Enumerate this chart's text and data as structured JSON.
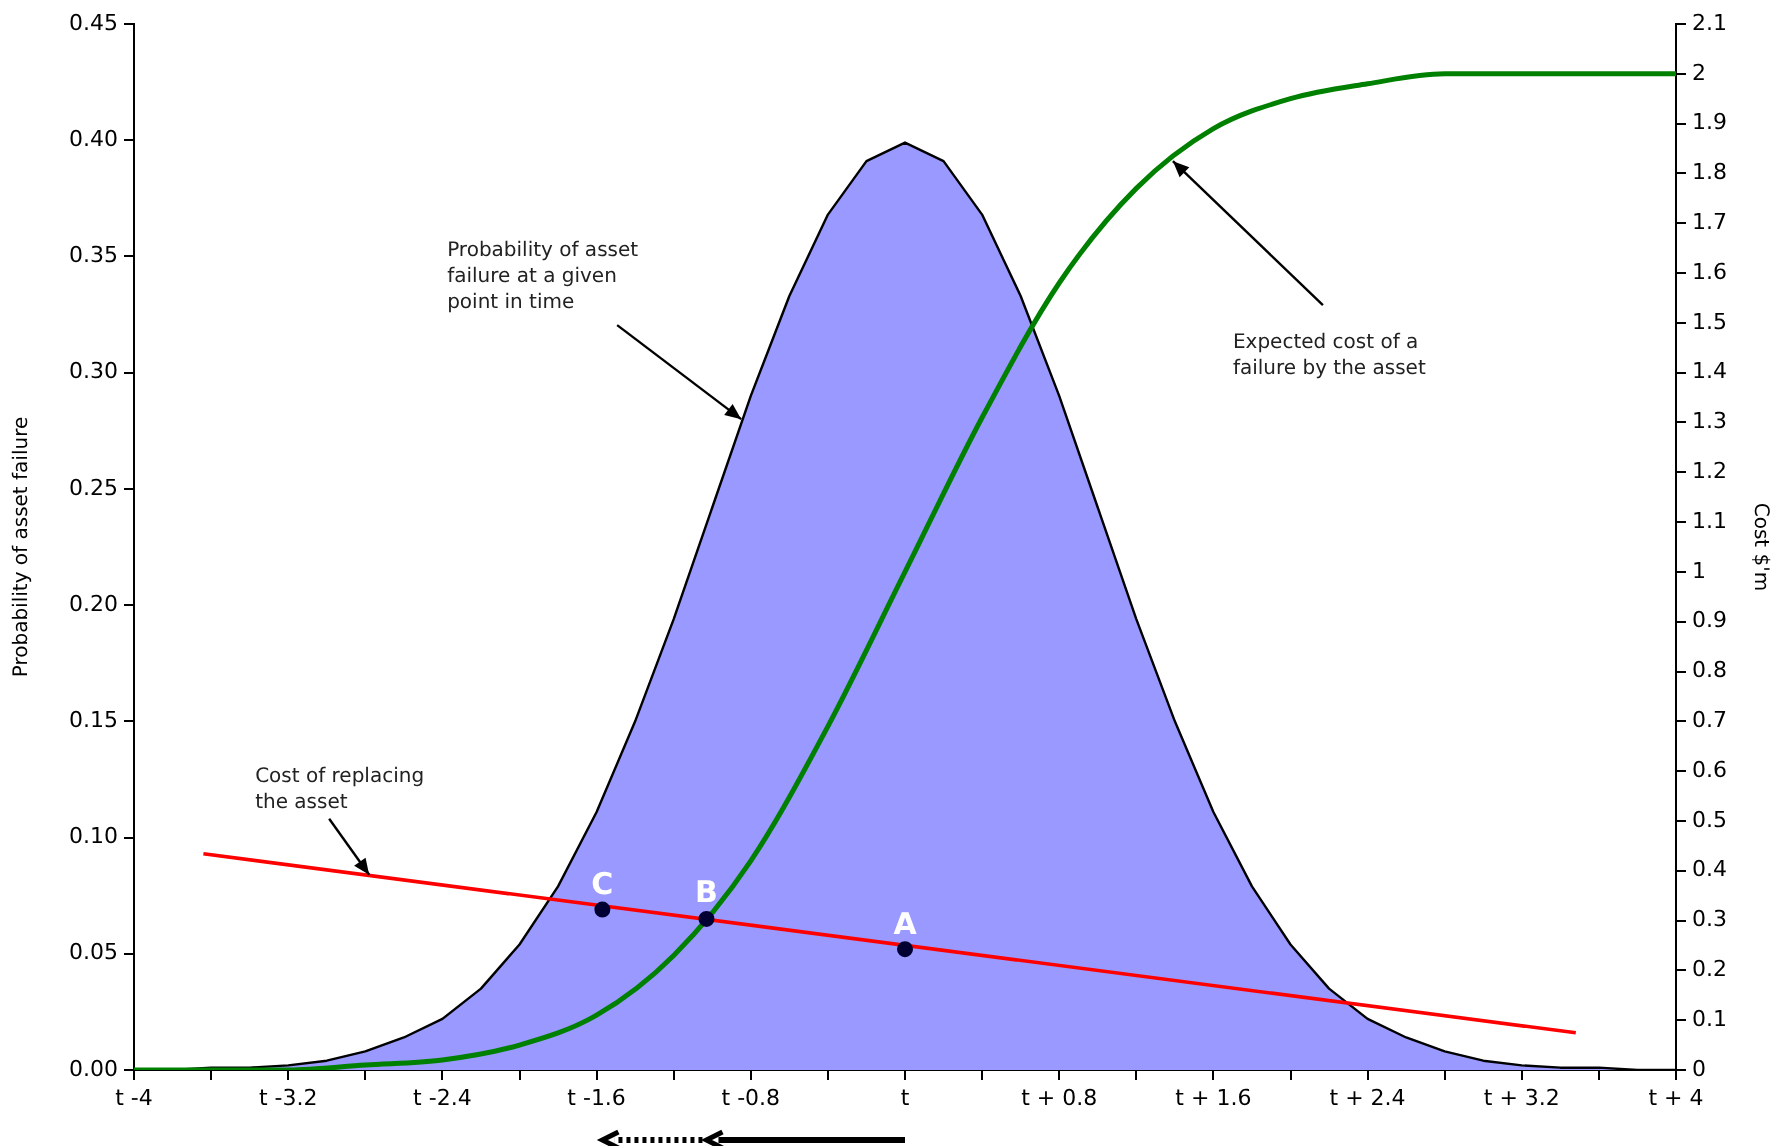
{
  "chart_data": {
    "type": "line",
    "ylabel": "Probability of asset failure",
    "y2label": "Cost $'m",
    "xlim": [
      -4,
      4
    ],
    "xticks": [
      {
        "value": -4,
        "label": "t -4"
      },
      {
        "value": -3.6,
        "label": null
      },
      {
        "value": -3.2,
        "label": "t -3.2"
      },
      {
        "value": -2.8,
        "label": null
      },
      {
        "value": -2.4,
        "label": "t -2.4"
      },
      {
        "value": -2,
        "label": null
      },
      {
        "value": -1.6,
        "label": "t -1.6"
      },
      {
        "value": -1.2,
        "label": null
      },
      {
        "value": -0.8,
        "label": "t -0.8"
      },
      {
        "value": -0.4,
        "label": null
      },
      {
        "value": 0,
        "label": "t"
      },
      {
        "value": 0.4,
        "label": null
      },
      {
        "value": 0.8,
        "label": "t + 0.8"
      },
      {
        "value": 1.2,
        "label": null
      },
      {
        "value": 1.6,
        "label": "t + 1.6"
      },
      {
        "value": 2,
        "label": null
      },
      {
        "value": 2.4,
        "label": "t + 2.4"
      },
      {
        "value": 2.8,
        "label": null
      },
      {
        "value": 3.2,
        "label": "t + 3.2"
      },
      {
        "value": 3.6,
        "label": null
      },
      {
        "value": 4,
        "label": "t + 4"
      }
    ],
    "ylim": [
      0,
      0.45
    ],
    "yticks": [
      {
        "value": 0,
        "label": "0.00"
      },
      {
        "value": 0.05,
        "label": "0.05"
      },
      {
        "value": 0.1,
        "label": "0.10"
      },
      {
        "value": 0.15,
        "label": "0.15"
      },
      {
        "value": 0.2,
        "label": "0.20"
      },
      {
        "value": 0.25,
        "label": "0.25"
      },
      {
        "value": 0.3,
        "label": "0.30"
      },
      {
        "value": 0.35,
        "label": "0.35"
      },
      {
        "value": 0.4,
        "label": "0.40"
      },
      {
        "value": 0.45,
        "label": "0.45"
      }
    ],
    "y2lim": [
      0,
      2.1
    ],
    "y2ticks": [
      0,
      0.1,
      0.2,
      0.3,
      0.4,
      0.5,
      0.6,
      0.7,
      0.8,
      0.9,
      1,
      1.1,
      1.2,
      1.3,
      1.4,
      1.5,
      1.6,
      1.7,
      1.8,
      1.9,
      2,
      2.1
    ],
    "grid": false,
    "legend": false,
    "series": [
      {
        "type": "area",
        "color": "#9999ff",
        "x": [
          -4,
          -3.8,
          -3.6,
          -3.4,
          -3.2,
          -3,
          -2.8,
          -2.6,
          -2.4,
          -2.2,
          -2,
          -1.8,
          -1.6,
          -1.4,
          -1.2,
          -1,
          -0.8,
          -0.6,
          -0.4,
          -0.2,
          0,
          0.2,
          0.4,
          0.6,
          0.8,
          1,
          1.2,
          1.4,
          1.6,
          1.8,
          2,
          2.2,
          2.4,
          2.6,
          2.8,
          3,
          3.2,
          3.4,
          3.6,
          3.8,
          4
        ],
        "values": [
          0,
          0,
          0.001,
          0.001,
          0.002,
          0.004,
          0.008,
          0.014,
          0.022,
          0.035,
          0.054,
          0.079,
          0.111,
          0.15,
          0.194,
          0.242,
          0.29,
          0.333,
          0.368,
          0.391,
          0.399,
          0.391,
          0.368,
          0.333,
          0.29,
          0.242,
          0.194,
          0.15,
          0.111,
          0.079,
          0.054,
          0.035,
          0.022,
          0.014,
          0.008,
          0.004,
          0.002,
          0.001,
          0.001,
          0,
          0
        ]
      },
      {
        "color": "#008000",
        "axis": "y2",
        "x": [
          -4,
          -3.6,
          -3.2,
          -2.8,
          -2.4,
          -2,
          -1.6,
          -1.2,
          -0.8,
          -0.4,
          0,
          0.4,
          0.8,
          1.2,
          1.6,
          2,
          2.4,
          2.8,
          3.2,
          3.6,
          4
        ],
        "values": [
          0,
          0,
          0,
          0.01,
          0.02,
          0.05,
          0.11,
          0.23,
          0.42,
          0.69,
          1,
          1.31,
          1.58,
          1.77,
          1.89,
          1.95,
          1.98,
          2,
          2,
          2,
          2
        ]
      },
      {
        "type": "line",
        "color": "#ff0000",
        "x": [
          -3.64,
          3.48
        ],
        "values": [
          0.093,
          0.016
        ]
      },
      {
        "type": "scatter",
        "color": "#000033",
        "marker": "circle",
        "x": [
          -1.57,
          -1.03,
          0
        ],
        "values": [
          0.069,
          0.065,
          0.052
        ]
      }
    ],
    "annotations": [
      {
        "text": "Probability of asset failure at a given point in time",
        "x": -0.85,
        "y": 0.28
      },
      {
        "text": "Expected cost of a failure by the asset",
        "x": 1.39,
        "y": 0.391
      },
      {
        "text": "Cost of replacing the asset",
        "x": -2.78,
        "y": 0.084
      },
      {
        "text": "C",
        "x": -1.57,
        "y": 0.069
      },
      {
        "text": "B",
        "x": -1.03,
        "y": 0.065
      },
      {
        "text": "A",
        "x": 0,
        "y": 0.052
      }
    ]
  }
}
